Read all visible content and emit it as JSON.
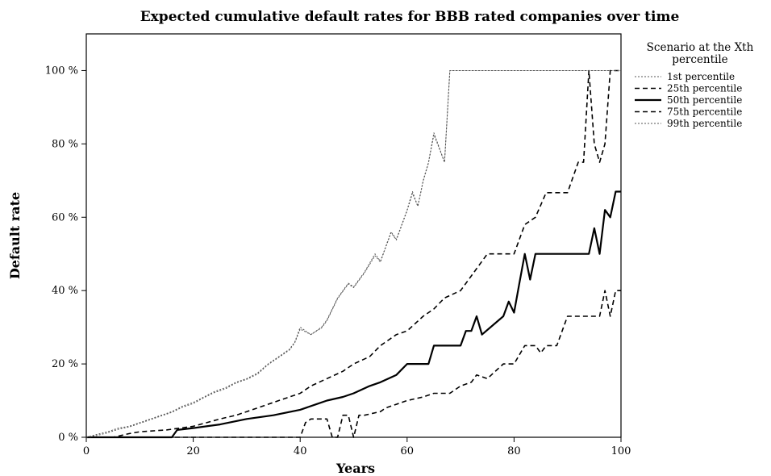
{
  "chart_data": {
    "type": "line",
    "title": "Expected cumulative default rates for BBB rated companies over time",
    "xlabel": "Years",
    "ylabel": "Default rate",
    "xlim": [
      0,
      100
    ],
    "ylim": [
      0,
      110
    ],
    "x_ticks": [
      {
        "value": 0,
        "label": "0"
      },
      {
        "value": 20,
        "label": "20"
      },
      {
        "value": 40,
        "label": "40"
      },
      {
        "value": 60,
        "label": "60"
      },
      {
        "value": 80,
        "label": "80"
      },
      {
        "value": 100,
        "label": "100"
      }
    ],
    "y_ticks": [
      {
        "value": 0,
        "label": "0 %"
      },
      {
        "value": 20,
        "label": "20 %"
      },
      {
        "value": 40,
        "label": "40 %"
      },
      {
        "value": 60,
        "label": "60 %"
      },
      {
        "value": 80,
        "label": "80 %"
      },
      {
        "value": 100,
        "label": "100 %"
      }
    ],
    "grid": false,
    "legend": {
      "title_line1": "Scenario at the Xth",
      "title_line2": "percentile",
      "position": "right"
    },
    "series": [
      {
        "name": "1st percentile",
        "style": "dotted",
        "x": [
          0,
          2,
          4,
          6,
          8,
          10,
          12,
          14,
          16,
          18,
          20,
          22,
          24,
          26,
          28,
          30,
          32,
          34,
          36,
          38,
          39,
          40,
          42,
          44,
          45,
          46,
          47,
          48,
          49,
          50,
          52,
          54,
          55,
          56,
          57,
          58,
          60,
          61,
          62,
          63,
          64,
          65,
          66,
          67,
          68,
          70,
          75,
          80,
          85,
          90,
          95,
          100
        ],
        "values": [
          0,
          0.8,
          1.5,
          2.5,
          3,
          4,
          5,
          6,
          7,
          8.5,
          9.5,
          11,
          12.5,
          13.5,
          15,
          16,
          17.5,
          20,
          22,
          24,
          26,
          30,
          28,
          30,
          32,
          35,
          38,
          40,
          42,
          41,
          45,
          50,
          48,
          52,
          56,
          54,
          62,
          67,
          63,
          70,
          75,
          83,
          79,
          75,
          100,
          100,
          100,
          100,
          100,
          100,
          100,
          100
        ]
      },
      {
        "name": "25th percentile",
        "style": "dashed",
        "x": [
          0,
          5,
          8,
          10,
          15,
          20,
          25,
          28,
          30,
          33,
          36,
          40,
          42,
          45,
          48,
          50,
          53,
          55,
          58,
          60,
          63,
          65,
          67,
          70,
          72,
          75,
          80,
          82,
          84,
          86,
          88,
          90,
          92,
          93,
          94,
          95,
          96,
          97,
          98,
          100
        ],
        "values": [
          0,
          0,
          1,
          1.5,
          2,
          3,
          5,
          6,
          7,
          8.5,
          10,
          12,
          14,
          16,
          18,
          20,
          22,
          25,
          28,
          29,
          33,
          35,
          38,
          40,
          44,
          50,
          50,
          58,
          60,
          66.7,
          66.7,
          66.7,
          75,
          75,
          100,
          80,
          75,
          80,
          100,
          100
        ]
      },
      {
        "name": "50th percentile",
        "style": "solid",
        "x": [
          0,
          15,
          16,
          17,
          20,
          25,
          30,
          35,
          40,
          43,
          45,
          48,
          50,
          53,
          55,
          58,
          60,
          64,
          65,
          70,
          71,
          72,
          73,
          74,
          78,
          79,
          80,
          81,
          82,
          83,
          84,
          90,
          94,
          95,
          96,
          97,
          98,
          99,
          100
        ],
        "values": [
          0,
          0,
          0,
          2,
          2.5,
          3.5,
          5,
          6,
          7.5,
          9,
          10,
          11,
          12,
          14,
          15,
          17,
          20,
          20,
          25,
          25,
          29,
          29,
          33,
          28,
          33,
          37,
          34,
          42,
          50,
          43,
          50,
          50,
          50,
          57,
          50,
          62,
          60,
          67,
          67
        ]
      },
      {
        "name": "75th percentile",
        "style": "dashed",
        "x": [
          0,
          38,
          40,
          41,
          42,
          43,
          44,
          45,
          46,
          47,
          48,
          49,
          50,
          51,
          52,
          55,
          56,
          58,
          60,
          63,
          65,
          68,
          70,
          72,
          73,
          75,
          78,
          80,
          82,
          84,
          85,
          86,
          88,
          90,
          95,
          96,
          97,
          98,
          99,
          100
        ],
        "values": [
          0,
          0,
          0,
          4,
          5,
          5,
          5,
          5,
          0,
          0,
          6,
          6,
          0,
          6,
          6,
          7,
          8,
          9,
          10,
          11,
          12,
          12,
          14,
          15,
          17,
          16,
          20,
          20,
          25,
          25,
          23,
          25,
          25,
          33,
          33,
          33,
          40,
          33,
          40,
          40
        ]
      },
      {
        "name": "99th percentile",
        "style": "dotted",
        "x": [
          0,
          2,
          4,
          6,
          8,
          10,
          12,
          14,
          16,
          18,
          20,
          22,
          24,
          26,
          28,
          30,
          32,
          34,
          36,
          38,
          39,
          40,
          42,
          44,
          45,
          46,
          47,
          48,
          49,
          50,
          52,
          54,
          55,
          56,
          57,
          58,
          60,
          61,
          62,
          63,
          64,
          65,
          66,
          67,
          68,
          70,
          75,
          80,
          85,
          90,
          95,
          100
        ],
        "values": [
          0,
          0.5,
          1.2,
          2.2,
          2.8,
          3.8,
          4.8,
          5.8,
          6.8,
          8.2,
          9.2,
          10.8,
          12.2,
          13.2,
          14.8,
          15.8,
          17.2,
          19.8,
          21.8,
          23.8,
          25.8,
          29.5,
          28,
          29.8,
          31.8,
          34.8,
          37.8,
          39.8,
          41.8,
          40.8,
          44.8,
          49.5,
          47.8,
          51.8,
          55.8,
          53.8,
          61.8,
          66.5,
          63,
          69.8,
          74.8,
          82.5,
          78.8,
          75,
          100,
          100,
          100,
          100,
          100,
          100,
          100,
          100
        ]
      }
    ]
  }
}
